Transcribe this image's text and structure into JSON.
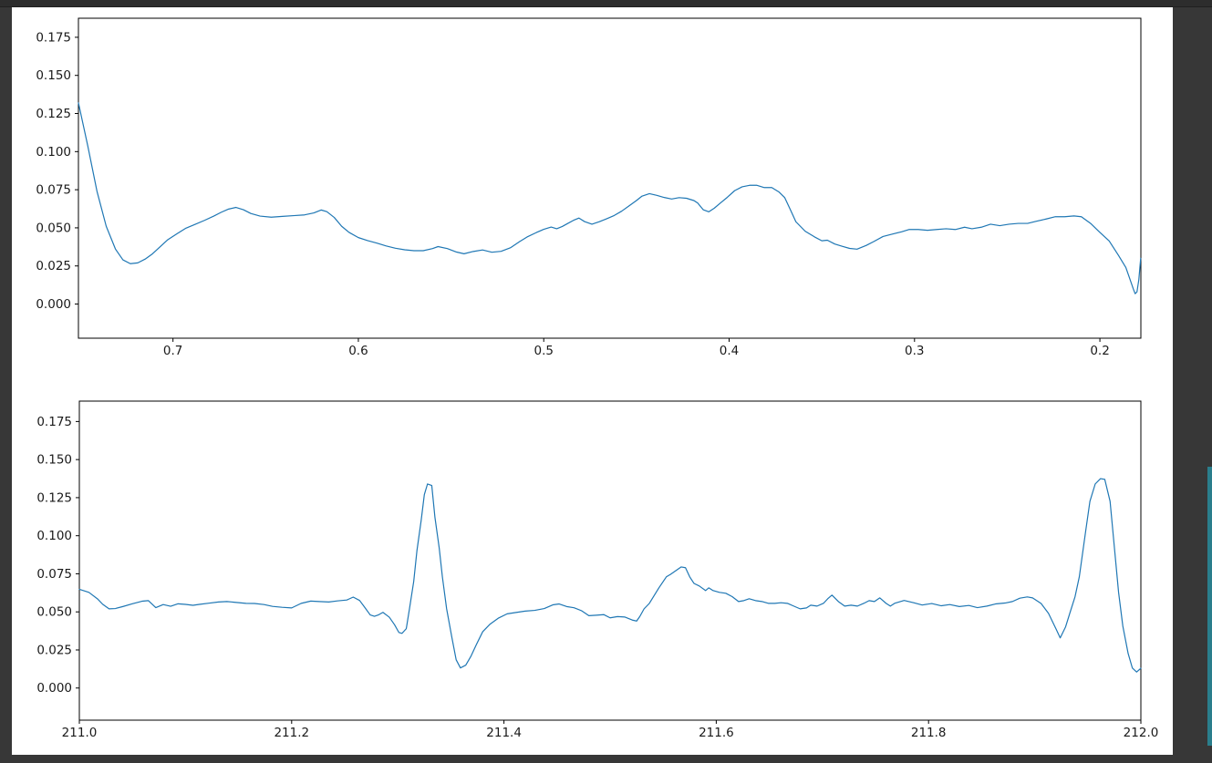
{
  "window": {
    "background_color": "#373737",
    "topbar_color": "#2d2d2d",
    "figure_background": "#ffffff",
    "scrollbar_color": "#2a7e8c"
  },
  "chart_data": [
    {
      "type": "line",
      "title": "",
      "xlabel": "",
      "ylabel": "",
      "legend": null,
      "grid": false,
      "line_color": "#1f77b4",
      "x_reversed": true,
      "xlim": [
        0.751,
        0.1779
      ],
      "ylim": [
        -0.0224,
        0.1875
      ],
      "xticks": {
        "values": [
          0.7,
          0.6,
          0.5,
          0.4,
          0.3,
          0.2
        ],
        "labels": [
          "0.7",
          "0.6",
          "0.5",
          "0.4",
          "0.3",
          "0.2"
        ]
      },
      "yticks": {
        "values": [
          0.175,
          0.15,
          0.125,
          0.1,
          0.075,
          0.05,
          0.025,
          0.0
        ],
        "labels": [
          "0.175",
          "0.150",
          "0.125",
          "0.100",
          "0.075",
          "0.050",
          "0.025",
          "0.000"
        ]
      },
      "points": [
        [
          0.751,
          0.132
        ],
        [
          0.746,
          0.104
        ],
        [
          0.741,
          0.074
        ],
        [
          0.736,
          0.051
        ],
        [
          0.731,
          0.036
        ],
        [
          0.727,
          0.029
        ],
        [
          0.723,
          0.0265
        ],
        [
          0.719,
          0.027
        ],
        [
          0.715,
          0.0295
        ],
        [
          0.711,
          0.033
        ],
        [
          0.707,
          0.0375
        ],
        [
          0.703,
          0.042
        ],
        [
          0.698,
          0.046
        ],
        [
          0.693,
          0.0498
        ],
        [
          0.688,
          0.0523
        ],
        [
          0.683,
          0.0549
        ],
        [
          0.678,
          0.0577
        ],
        [
          0.674,
          0.0602
        ],
        [
          0.67,
          0.0623
        ],
        [
          0.666,
          0.0634
        ],
        [
          0.662,
          0.0619
        ],
        [
          0.658,
          0.0594
        ],
        [
          0.653,
          0.0577
        ],
        [
          0.647,
          0.057
        ],
        [
          0.641,
          0.0575
        ],
        [
          0.635,
          0.058
        ],
        [
          0.629,
          0.0585
        ],
        [
          0.624,
          0.0598
        ],
        [
          0.62,
          0.0617
        ],
        [
          0.617,
          0.0606
        ],
        [
          0.613,
          0.0568
        ],
        [
          0.609,
          0.051
        ],
        [
          0.605,
          0.047
        ],
        [
          0.6,
          0.0436
        ],
        [
          0.595,
          0.0416
        ],
        [
          0.59,
          0.04
        ],
        [
          0.585,
          0.0381
        ],
        [
          0.58,
          0.0366
        ],
        [
          0.575,
          0.0356
        ],
        [
          0.57,
          0.035
        ],
        [
          0.565,
          0.035
        ],
        [
          0.56,
          0.0364
        ],
        [
          0.557,
          0.0377
        ],
        [
          0.552,
          0.0364
        ],
        [
          0.547,
          0.0341
        ],
        [
          0.543,
          0.033
        ],
        [
          0.538,
          0.0345
        ],
        [
          0.533,
          0.0355
        ],
        [
          0.528,
          0.034
        ],
        [
          0.523,
          0.0346
        ],
        [
          0.518,
          0.0369
        ],
        [
          0.513,
          0.041
        ],
        [
          0.509,
          0.044
        ],
        [
          0.504,
          0.0469
        ],
        [
          0.5,
          0.049
        ],
        [
          0.496,
          0.0505
        ],
        [
          0.493,
          0.0494
        ],
        [
          0.49,
          0.0509
        ],
        [
          0.487,
          0.0529
        ],
        [
          0.484,
          0.0549
        ],
        [
          0.481,
          0.0564
        ],
        [
          0.478,
          0.0541
        ],
        [
          0.474,
          0.0524
        ],
        [
          0.47,
          0.054
        ],
        [
          0.466,
          0.056
        ],
        [
          0.462,
          0.0581
        ],
        [
          0.458,
          0.0609
        ],
        [
          0.454,
          0.0644
        ],
        [
          0.45,
          0.0679
        ],
        [
          0.447,
          0.0708
        ],
        [
          0.443,
          0.0724
        ],
        [
          0.439,
          0.0713
        ],
        [
          0.435,
          0.0699
        ],
        [
          0.431,
          0.0689
        ],
        [
          0.427,
          0.0698
        ],
        [
          0.423,
          0.0694
        ],
        [
          0.419,
          0.0679
        ],
        [
          0.417,
          0.0663
        ],
        [
          0.414,
          0.0619
        ],
        [
          0.411,
          0.0605
        ],
        [
          0.408,
          0.0629
        ],
        [
          0.405,
          0.066
        ],
        [
          0.401,
          0.07
        ],
        [
          0.397,
          0.0744
        ],
        [
          0.393,
          0.0769
        ],
        [
          0.389,
          0.0779
        ],
        [
          0.385,
          0.0779
        ],
        [
          0.381,
          0.0764
        ],
        [
          0.377,
          0.0764
        ],
        [
          0.373,
          0.0734
        ],
        [
          0.37,
          0.0698
        ],
        [
          0.367,
          0.062
        ],
        [
          0.364,
          0.054
        ],
        [
          0.359,
          0.0478
        ],
        [
          0.354,
          0.0441
        ],
        [
          0.35,
          0.0415
        ],
        [
          0.347,
          0.0419
        ],
        [
          0.343,
          0.0394
        ],
        [
          0.339,
          0.0379
        ],
        [
          0.335,
          0.0365
        ],
        [
          0.331,
          0.036
        ],
        [
          0.326,
          0.0385
        ],
        [
          0.322,
          0.041
        ],
        [
          0.317,
          0.0443
        ],
        [
          0.312,
          0.0459
        ],
        [
          0.307,
          0.0474
        ],
        [
          0.303,
          0.0489
        ],
        [
          0.298,
          0.0489
        ],
        [
          0.293,
          0.0484
        ],
        [
          0.288,
          0.0489
        ],
        [
          0.283,
          0.0494
        ],
        [
          0.278,
          0.0489
        ],
        [
          0.273,
          0.0504
        ],
        [
          0.269,
          0.0494
        ],
        [
          0.264,
          0.0504
        ],
        [
          0.259,
          0.0524
        ],
        [
          0.254,
          0.0514
        ],
        [
          0.249,
          0.0524
        ],
        [
          0.244,
          0.0529
        ],
        [
          0.239,
          0.0529
        ],
        [
          0.234,
          0.0544
        ],
        [
          0.229,
          0.0558
        ],
        [
          0.224,
          0.0573
        ],
        [
          0.219,
          0.0573
        ],
        [
          0.214,
          0.0578
        ],
        [
          0.21,
          0.0573
        ],
        [
          0.205,
          0.0529
        ],
        [
          0.2,
          0.047
        ],
        [
          0.195,
          0.0414
        ],
        [
          0.19,
          0.032
        ],
        [
          0.186,
          0.024
        ],
        [
          0.184,
          0.017
        ],
        [
          0.182,
          0.01
        ],
        [
          0.181,
          0.0068
        ],
        [
          0.18,
          0.008
        ],
        [
          0.179,
          0.016
        ],
        [
          0.178,
          0.03
        ]
      ]
    },
    {
      "type": "line",
      "title": "",
      "xlabel": "",
      "ylabel": "",
      "legend": null,
      "grid": false,
      "line_color": "#1f77b4",
      "x_reversed": false,
      "xlim": [
        211.0,
        212.0
      ],
      "ylim": [
        -0.0211,
        0.1884
      ],
      "xticks": {
        "values": [
          211.0,
          211.2,
          211.4,
          211.6,
          211.8,
          212.0
        ],
        "labels": [
          "211.0",
          "211.2",
          "211.4",
          "211.6",
          "211.8",
          "212.0"
        ]
      },
      "yticks": {
        "values": [
          0.175,
          0.15,
          0.125,
          0.1,
          0.075,
          0.05,
          0.025,
          0.0
        ],
        "labels": [
          "0.175",
          "0.150",
          "0.125",
          "0.100",
          "0.075",
          "0.050",
          "0.025",
          "0.000"
        ]
      },
      "points": [
        [
          211.0,
          0.0648
        ],
        [
          211.009,
          0.0628
        ],
        [
          211.017,
          0.0586
        ],
        [
          211.022,
          0.055
        ],
        [
          211.028,
          0.052
        ],
        [
          211.034,
          0.0522
        ],
        [
          211.041,
          0.0535
        ],
        [
          211.05,
          0.0553
        ],
        [
          211.059,
          0.057
        ],
        [
          211.065,
          0.0574
        ],
        [
          211.072,
          0.0528
        ],
        [
          211.079,
          0.0548
        ],
        [
          211.086,
          0.0537
        ],
        [
          211.093,
          0.0553
        ],
        [
          211.1,
          0.0549
        ],
        [
          211.107,
          0.0543
        ],
        [
          211.113,
          0.0549
        ],
        [
          211.122,
          0.0557
        ],
        [
          211.131,
          0.0565
        ],
        [
          211.139,
          0.0568
        ],
        [
          211.148,
          0.0562
        ],
        [
          211.157,
          0.0556
        ],
        [
          211.165,
          0.0555
        ],
        [
          211.174,
          0.0548
        ],
        [
          211.182,
          0.0536
        ],
        [
          211.191,
          0.053
        ],
        [
          211.2,
          0.0526
        ],
        [
          211.209,
          0.0556
        ],
        [
          211.218,
          0.0571
        ],
        [
          211.226,
          0.0568
        ],
        [
          211.235,
          0.0565
        ],
        [
          211.243,
          0.0572
        ],
        [
          211.252,
          0.0578
        ],
        [
          211.258,
          0.0597
        ],
        [
          211.264,
          0.0575
        ],
        [
          211.269,
          0.0528
        ],
        [
          211.274,
          0.048
        ],
        [
          211.278,
          0.0471
        ],
        [
          211.282,
          0.0481
        ],
        [
          211.286,
          0.0497
        ],
        [
          211.292,
          0.0465
        ],
        [
          211.297,
          0.0415
        ],
        [
          211.301,
          0.0365
        ],
        [
          211.304,
          0.0359
        ],
        [
          211.308,
          0.039
        ],
        [
          211.311,
          0.052
        ],
        [
          211.315,
          0.07
        ],
        [
          211.318,
          0.09
        ],
        [
          211.322,
          0.11
        ],
        [
          211.325,
          0.127
        ],
        [
          211.328,
          0.134
        ],
        [
          211.332,
          0.133
        ],
        [
          211.335,
          0.112
        ],
        [
          211.339,
          0.092
        ],
        [
          211.342,
          0.073
        ],
        [
          211.346,
          0.052
        ],
        [
          211.351,
          0.033
        ],
        [
          211.355,
          0.0185
        ],
        [
          211.359,
          0.0132
        ],
        [
          211.364,
          0.015
        ],
        [
          211.369,
          0.021
        ],
        [
          211.374,
          0.0285
        ],
        [
          211.38,
          0.037
        ],
        [
          211.387,
          0.042
        ],
        [
          211.395,
          0.046
        ],
        [
          211.403,
          0.0487
        ],
        [
          211.412,
          0.0497
        ],
        [
          211.42,
          0.0505
        ],
        [
          211.429,
          0.051
        ],
        [
          211.438,
          0.0522
        ],
        [
          211.446,
          0.0546
        ],
        [
          211.452,
          0.0552
        ],
        [
          211.459,
          0.0535
        ],
        [
          211.466,
          0.0527
        ],
        [
          211.473,
          0.0508
        ],
        [
          211.48,
          0.0475
        ],
        [
          211.487,
          0.0478
        ],
        [
          211.494,
          0.0482
        ],
        [
          211.5,
          0.0461
        ],
        [
          211.507,
          0.0469
        ],
        [
          211.514,
          0.0466
        ],
        [
          211.521,
          0.0446
        ],
        [
          211.525,
          0.044
        ],
        [
          211.528,
          0.047
        ],
        [
          211.532,
          0.052
        ],
        [
          211.537,
          0.0556
        ],
        [
          211.546,
          0.0658
        ],
        [
          211.553,
          0.073
        ],
        [
          211.557,
          0.0747
        ],
        [
          211.561,
          0.0766
        ],
        [
          211.567,
          0.0795
        ],
        [
          211.571,
          0.079
        ],
        [
          211.575,
          0.073
        ],
        [
          211.579,
          0.0687
        ],
        [
          211.584,
          0.067
        ],
        [
          211.59,
          0.064
        ],
        [
          211.593,
          0.0658
        ],
        [
          211.597,
          0.064
        ],
        [
          211.603,
          0.0628
        ],
        [
          211.609,
          0.0622
        ],
        [
          211.615,
          0.06
        ],
        [
          211.621,
          0.0568
        ],
        [
          211.626,
          0.0574
        ],
        [
          211.631,
          0.0586
        ],
        [
          211.637,
          0.0574
        ],
        [
          211.643,
          0.0568
        ],
        [
          211.649,
          0.0556
        ],
        [
          211.655,
          0.0556
        ],
        [
          211.661,
          0.056
        ],
        [
          211.667,
          0.0556
        ],
        [
          211.673,
          0.0538
        ],
        [
          211.679,
          0.052
        ],
        [
          211.685,
          0.0526
        ],
        [
          211.689,
          0.0544
        ],
        [
          211.695,
          0.0538
        ],
        [
          211.701,
          0.0556
        ],
        [
          211.705,
          0.0586
        ],
        [
          211.709,
          0.061
        ],
        [
          211.715,
          0.0568
        ],
        [
          211.721,
          0.0538
        ],
        [
          211.727,
          0.0544
        ],
        [
          211.733,
          0.0538
        ],
        [
          211.739,
          0.0556
        ],
        [
          211.744,
          0.0574
        ],
        [
          211.749,
          0.0568
        ],
        [
          211.754,
          0.0592
        ],
        [
          211.76,
          0.0556
        ],
        [
          211.764,
          0.0538
        ],
        [
          211.768,
          0.0556
        ],
        [
          211.777,
          0.0575
        ],
        [
          211.786,
          0.056
        ],
        [
          211.794,
          0.0545
        ],
        [
          211.803,
          0.0555
        ],
        [
          211.812,
          0.054
        ],
        [
          211.82,
          0.0548
        ],
        [
          211.829,
          0.0535
        ],
        [
          211.838,
          0.0542
        ],
        [
          211.846,
          0.0528
        ],
        [
          211.855,
          0.0538
        ],
        [
          211.863,
          0.0552
        ],
        [
          211.872,
          0.0558
        ],
        [
          211.879,
          0.0568
        ],
        [
          211.886,
          0.059
        ],
        [
          211.893,
          0.0598
        ],
        [
          211.898,
          0.0592
        ],
        [
          211.906,
          0.0555
        ],
        [
          211.913,
          0.049
        ],
        [
          211.92,
          0.0389
        ],
        [
          211.924,
          0.0329
        ],
        [
          211.929,
          0.04
        ],
        [
          211.933,
          0.049
        ],
        [
          211.938,
          0.06
        ],
        [
          211.942,
          0.073
        ],
        [
          211.948,
          0.103
        ],
        [
          211.952,
          0.1226
        ],
        [
          211.957,
          0.134
        ],
        [
          211.962,
          0.1375
        ],
        [
          211.966,
          0.137
        ],
        [
          211.971,
          0.1226
        ],
        [
          211.975,
          0.0927
        ],
        [
          211.979,
          0.0628
        ],
        [
          211.983,
          0.0407
        ],
        [
          211.988,
          0.0227
        ],
        [
          211.992,
          0.0131
        ],
        [
          211.996,
          0.0105
        ],
        [
          212.0,
          0.013
        ]
      ]
    }
  ]
}
